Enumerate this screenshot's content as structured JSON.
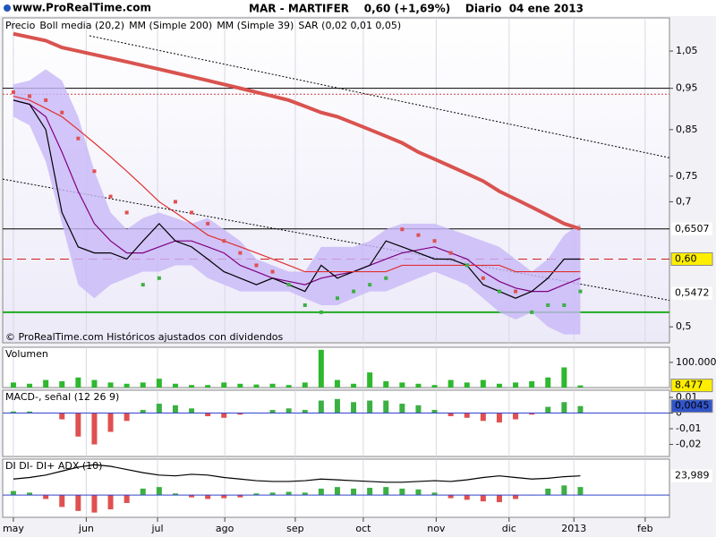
{
  "header": {
    "logo": "www.ProRealTime.com",
    "title": "MAR - MARTIFER    0,60 (+1,69%)    Diario  04 ene 2013"
  },
  "chart_data": [
    {
      "type": "line",
      "log": true,
      "note": "© ProRealTime.com Históricos ajustados con dividendos",
      "x": [
        0,
        1,
        2,
        3,
        4,
        5,
        6,
        7,
        8,
        9,
        10,
        11,
        12,
        13,
        14,
        15,
        16,
        17,
        18,
        19,
        20,
        21,
        22,
        23,
        24,
        25,
        26,
        27,
        28,
        29,
        30,
        31,
        32,
        33,
        34,
        35
      ],
      "xlim": [
        -0.66,
        40.5
      ],
      "xticks": [
        {
          "value": 0,
          "label": "may"
        },
        {
          "value": 4.5,
          "label": "jun"
        },
        {
          "value": 8.9,
          "label": "jul"
        },
        {
          "value": 13.05,
          "label": "ago"
        },
        {
          "value": 17.4,
          "label": "sep"
        },
        {
          "value": 21.6,
          "label": "oct"
        },
        {
          "value": 26.1,
          "label": "nov"
        },
        {
          "value": 30.6,
          "label": "dic"
        },
        {
          "value": 34.6,
          "label": "2013"
        },
        {
          "value": 39,
          "label": "feb"
        }
      ],
      "ylim": [
        0.479,
        1.148
      ],
      "yticks": [
        {
          "value": 1.05,
          "label": "1,05"
        },
        {
          "value": 0.95,
          "label": "0,95"
        },
        {
          "value": 0.85,
          "label": "0,85"
        },
        {
          "value": 0.75,
          "label": "0,75"
        },
        {
          "value": 0.7,
          "label": "0,7"
        },
        {
          "value": 0.5,
          "label": "0,5"
        }
      ],
      "series": [
        {
          "name": "Precio",
          "color": "#000000",
          "style": "line",
          "values": [
            0.92,
            0.91,
            0.85,
            0.68,
            0.62,
            0.61,
            0.61,
            0.6,
            0.63,
            0.66,
            0.63,
            0.62,
            0.6,
            0.58,
            0.57,
            0.56,
            0.57,
            0.56,
            0.55,
            0.59,
            0.57,
            0.58,
            0.59,
            0.63,
            0.62,
            0.61,
            0.6,
            0.6,
            0.59,
            0.56,
            0.55,
            0.54,
            0.55,
            0.57,
            0.6,
            0.6
          ]
        },
        {
          "name": "Boll media (20,2)",
          "color": "#800080",
          "style": "band",
          "band_color": "#c8b8f8",
          "values": [
            0.92,
            0.91,
            0.88,
            0.8,
            0.72,
            0.66,
            0.63,
            0.61,
            0.61,
            0.62,
            0.63,
            0.63,
            0.62,
            0.61,
            0.59,
            0.58,
            0.57,
            0.565,
            0.56,
            0.57,
            0.575,
            0.58,
            0.59,
            0.6,
            0.61,
            0.615,
            0.62,
            0.61,
            0.6,
            0.58,
            0.565,
            0.555,
            0.55,
            0.55,
            0.56,
            0.57
          ],
          "upper": [
            0.96,
            0.97,
            1.0,
            0.97,
            0.88,
            0.76,
            0.68,
            0.65,
            0.67,
            0.68,
            0.67,
            0.66,
            0.67,
            0.65,
            0.63,
            0.6,
            0.59,
            0.58,
            0.58,
            0.62,
            0.62,
            0.62,
            0.63,
            0.65,
            0.66,
            0.66,
            0.66,
            0.65,
            0.64,
            0.63,
            0.62,
            0.6,
            0.58,
            0.6,
            0.64,
            0.66
          ],
          "lower": [
            0.88,
            0.86,
            0.78,
            0.66,
            0.56,
            0.54,
            0.56,
            0.57,
            0.58,
            0.58,
            0.59,
            0.59,
            0.57,
            0.56,
            0.55,
            0.55,
            0.55,
            0.55,
            0.54,
            0.53,
            0.53,
            0.54,
            0.55,
            0.55,
            0.56,
            0.57,
            0.58,
            0.57,
            0.56,
            0.54,
            0.52,
            0.51,
            0.52,
            0.5,
            0.49,
            0.49
          ]
        },
        {
          "name": "MM (Simple 200)",
          "color": "#d9534f",
          "style": "thick",
          "values": [
            1.1,
            1.09,
            1.08,
            1.06,
            1.05,
            1.04,
            1.03,
            1.02,
            1.01,
            1.0,
            0.99,
            0.98,
            0.97,
            0.96,
            0.95,
            0.94,
            0.93,
            0.92,
            0.905,
            0.89,
            0.88,
            0.865,
            0.85,
            0.835,
            0.82,
            0.8,
            0.785,
            0.77,
            0.755,
            0.74,
            0.72,
            0.705,
            0.69,
            0.675,
            0.66,
            0.6507
          ]
        },
        {
          "name": "MM (Simple 39)",
          "color": "#e03030",
          "style": "line",
          "values": [
            0.93,
            0.92,
            0.9,
            0.88,
            0.85,
            0.82,
            0.79,
            0.76,
            0.73,
            0.7,
            0.68,
            0.66,
            0.64,
            0.63,
            0.62,
            0.61,
            0.6,
            0.59,
            0.58,
            0.58,
            0.58,
            0.58,
            0.58,
            0.58,
            0.59,
            0.59,
            0.59,
            0.59,
            0.59,
            0.59,
            0.59,
            0.58,
            0.58,
            0.58,
            0.58,
            0.58
          ]
        },
        {
          "name": "SAR (0,02 0,01 0,05)",
          "color": "#3cb043",
          "above_color": "#e05050",
          "style": "dots",
          "values": [
            0.94,
            0.93,
            0.92,
            0.89,
            0.83,
            0.76,
            0.71,
            0.68,
            0.56,
            0.57,
            0.7,
            0.68,
            0.66,
            0.63,
            0.61,
            0.59,
            0.58,
            0.56,
            0.53,
            0.52,
            0.54,
            0.55,
            0.56,
            0.57,
            0.65,
            0.64,
            0.63,
            0.61,
            0.59,
            0.57,
            0.55,
            0.55,
            0.52,
            0.53,
            0.53,
            0.55
          ]
        }
      ],
      "hlines": [
        {
          "value": 0.95,
          "color": "#000000",
          "dash": "none"
        },
        {
          "value": 0.935,
          "color": "#d04040",
          "dash": "2 2"
        },
        {
          "value": 0.6507,
          "color": "#000000",
          "dash": "none"
        },
        {
          "value": 0.6,
          "color": "#d02020",
          "dash": "10 6"
        },
        {
          "value": 0.52,
          "color": "#22aa22",
          "dash": "none"
        }
      ],
      "trendlines": [
        {
          "x": [
            -0.66,
            40.5
          ],
          "y": [
            0.744,
            0.537
          ]
        },
        {
          "x": [
            4.7,
            40.5
          ],
          "y": [
            1.094,
            0.788
          ]
        }
      ],
      "markers": [
        {
          "value": 0.6507,
          "label": "0,6507",
          "color": "#d02020",
          "bg": "#ffffff"
        },
        {
          "value": 0.6,
          "label": "0,60",
          "color": "#000000",
          "bg": "#ffee00"
        },
        {
          "value": 0.5472,
          "label": "0,5472",
          "color": "#22aa22",
          "bg": "#ffffff"
        }
      ]
    },
    {
      "type": "bar",
      "label": "Volumen",
      "color": "#2eb82e",
      "ylim": [
        0,
        160000
      ],
      "yticks": [
        {
          "value": 100000,
          "label": "100.000"
        }
      ],
      "values": [
        20000,
        15000,
        30000,
        25000,
        40000,
        30000,
        20000,
        15000,
        20000,
        35000,
        15000,
        10000,
        10000,
        20000,
        15000,
        12000,
        15000,
        10000,
        20000,
        150000,
        30000,
        15000,
        60000,
        25000,
        20000,
        15000,
        10000,
        30000,
        20000,
        30000,
        15000,
        20000,
        25000,
        40000,
        80000,
        8477
      ],
      "markers": [
        {
          "value": 8477,
          "label": "8.477",
          "color": "#000000",
          "bg": "#ffee00"
        }
      ]
    },
    {
      "type": "bar",
      "label": "MACD-, señal (12 26 9)",
      "color": "#3cb043",
      "neg_color": "#e05050",
      "ylim": [
        -0.0277,
        0.0146
      ],
      "yticks": [
        {
          "value": 0.01,
          "label": "0,01"
        },
        0,
        {
          "value": -0.01,
          "label": "-0,01"
        },
        {
          "value": -0.02,
          "label": "-0,02"
        }
      ],
      "values": [
        0.001,
        0.001,
        0,
        -0.004,
        -0.015,
        -0.02,
        -0.012,
        -0.005,
        0.002,
        0.006,
        0.005,
        0.003,
        -0.002,
        -0.003,
        -0.001,
        0,
        0.002,
        0.003,
        0.002,
        0.008,
        0.009,
        0.007,
        0.008,
        0.008,
        0.006,
        0.005,
        0.002,
        -0.002,
        -0.003,
        -0.005,
        -0.006,
        -0.004,
        -0.001,
        0.004,
        0.007,
        0.0045
      ],
      "markers": [
        {
          "value": 0.0045,
          "label": "0,0045",
          "color": "#ffffff",
          "bg": "#3355cc"
        }
      ]
    },
    {
      "type": "line",
      "label": "DI DI- DI+ ADX (10)",
      "color": "#000000",
      "bar_color": "#3cb043",
      "neg_color": "#e05050",
      "ylim": [
        -28,
        45
      ],
      "bars": [
        5,
        3,
        -5,
        -15,
        -20,
        -22,
        -18,
        -10,
        8,
        10,
        2,
        -3,
        -5,
        -4,
        -3,
        2,
        3,
        4,
        3,
        8,
        10,
        8,
        9,
        10,
        8,
        7,
        3,
        -4,
        -6,
        -8,
        -9,
        -5,
        0,
        8,
        12,
        10
      ],
      "values": [
        20,
        22,
        25,
        30,
        35,
        38,
        36,
        32,
        28,
        25,
        24,
        26,
        25,
        22,
        20,
        18,
        17,
        17,
        18,
        20,
        19,
        18,
        17,
        16,
        16,
        17,
        18,
        17,
        19,
        22,
        24,
        22,
        20,
        21,
        23,
        23.989
      ],
      "markers": [
        {
          "value": 23.989,
          "label": "23,989",
          "color": "#000000",
          "bg": "#ffffff"
        }
      ]
    }
  ]
}
